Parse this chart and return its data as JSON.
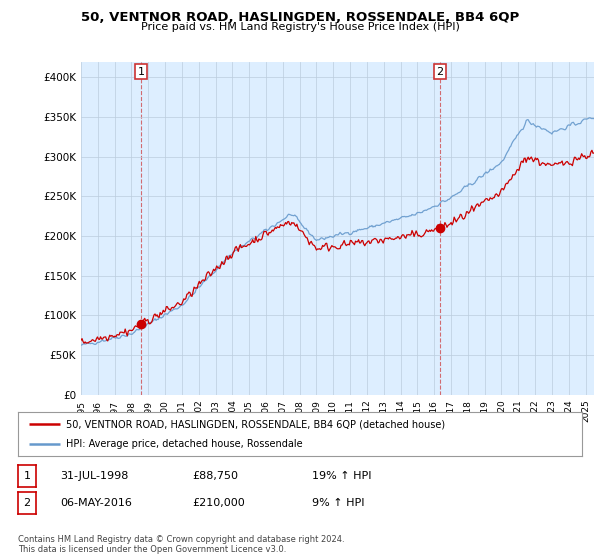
{
  "title": "50, VENTNOR ROAD, HASLINGDEN, ROSSENDALE, BB4 6QP",
  "subtitle": "Price paid vs. HM Land Registry's House Price Index (HPI)",
  "ylabel_ticks": [
    "£0",
    "£50K",
    "£100K",
    "£150K",
    "£200K",
    "£250K",
    "£300K",
    "£350K",
    "£400K"
  ],
  "ytick_values": [
    0,
    50000,
    100000,
    150000,
    200000,
    250000,
    300000,
    350000,
    400000
  ],
  "ylim": [
    0,
    420000
  ],
  "xlim_start": 1995.0,
  "xlim_end": 2025.5,
  "legend_line1": "50, VENTNOR ROAD, HASLINGDEN, ROSSENDALE, BB4 6QP (detached house)",
  "legend_line2": "HPI: Average price, detached house, Rossendale",
  "sale1_label": "1",
  "sale1_date": "31-JUL-1998",
  "sale1_price": "£88,750",
  "sale1_hpi": "19% ↑ HPI",
  "sale2_label": "2",
  "sale2_date": "06-MAY-2016",
  "sale2_price": "£210,000",
  "sale2_hpi": "9% ↑ HPI",
  "footer": "Contains HM Land Registry data © Crown copyright and database right 2024.\nThis data is licensed under the Open Government Licence v3.0.",
  "sale1_year": 1998.58,
  "sale2_year": 2016.35,
  "sale1_value": 88750,
  "sale2_value": 210000,
  "line_color_sale": "#cc0000",
  "line_color_hpi": "#6699cc",
  "plot_bg_color": "#ddeeff",
  "background_color": "#ffffff",
  "grid_color": "#bbccdd"
}
